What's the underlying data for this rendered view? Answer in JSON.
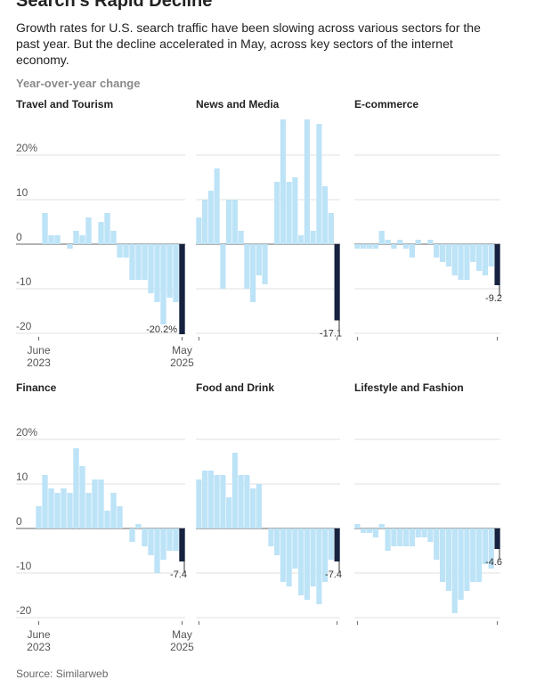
{
  "title": "Search's Rapid Decline",
  "subtitle": "Growth rates for U.S. search traffic have been slowing across various sectors for the past year. But the decline accelerated in May, across key sectors of the internet economy.",
  "axis_label": "Year-over-year change",
  "source": "Source: Similarweb",
  "chart_data": [
    {
      "type": "bar",
      "title": "Travel and Tourism",
      "color": "#bde3f7",
      "highlight_color": "#16223f",
      "categories": [
        "June 2023",
        null,
        null,
        null,
        null,
        null,
        null,
        null,
        null,
        null,
        null,
        null,
        null,
        null,
        null,
        null,
        null,
        null,
        null,
        null,
        null,
        null,
        null,
        "May 2025"
      ],
      "values": [
        0,
        7,
        2,
        2,
        0,
        -1,
        3,
        2,
        6,
        0,
        5,
        7,
        3,
        -3,
        -3,
        -8,
        -8,
        -8,
        -11,
        -13,
        -18,
        -12,
        -13,
        -20.2
      ],
      "value_labels": [
        null,
        null,
        null,
        null,
        null,
        null,
        null,
        null,
        null,
        null,
        null,
        null,
        null,
        null,
        null,
        null,
        null,
        null,
        null,
        null,
        null,
        null,
        null,
        "-20.2%"
      ],
      "ylim": [
        -21,
        30
      ],
      "yticks": [
        {
          "value": 20,
          "label": "20%"
        },
        10,
        0,
        -10,
        -20
      ]
    },
    {
      "type": "bar",
      "title": "News and Media",
      "color": "#bde3f7",
      "highlight_color": "#16223f",
      "values": [
        6,
        10,
        12,
        17,
        -10,
        10,
        10,
        3,
        -10,
        -13,
        -7,
        -9,
        0,
        14,
        28,
        14,
        15,
        2,
        28,
        3,
        27,
        13,
        7,
        -17.1
      ],
      "ylim": [
        -21,
        30
      ],
      "yticks": [
        20,
        10,
        0,
        -10,
        -20
      ]
    },
    {
      "type": "bar",
      "title": "E-commerce",
      "color": "#bde3f7",
      "highlight_color": "#16223f",
      "values": [
        -1,
        -1,
        -1,
        -1,
        3,
        1,
        -1,
        1,
        -1,
        -3,
        1,
        0,
        1,
        -3,
        -4,
        -5,
        -7,
        -8,
        -8,
        -4,
        -6,
        -7,
        -5,
        -9.2
      ],
      "ylim": [
        -21,
        30
      ],
      "yticks": [
        20,
        10,
        0,
        -10,
        -20
      ]
    },
    {
      "type": "bar",
      "title": "Finance",
      "color": "#bde3f7",
      "highlight_color": "#16223f",
      "categories": [
        "June 2023",
        null,
        null,
        null,
        null,
        null,
        null,
        null,
        null,
        null,
        null,
        null,
        null,
        null,
        null,
        null,
        null,
        null,
        null,
        null,
        null,
        null,
        null,
        "May 2025"
      ],
      "values": [
        5,
        12,
        9,
        8,
        9,
        8,
        18,
        14,
        8,
        11,
        11,
        4,
        8,
        5,
        0,
        -3,
        1,
        -4,
        -6,
        -10,
        -7,
        -5,
        -5,
        -7.4
      ],
      "ylim": [
        -21,
        30
      ],
      "yticks": [
        {
          "value": 20,
          "label": "20%"
        },
        10,
        0,
        -10,
        -20
      ]
    },
    {
      "type": "bar",
      "title": "Food and Drink",
      "color": "#bde3f7",
      "highlight_color": "#16223f",
      "values": [
        11,
        13,
        13,
        12,
        12,
        7,
        17,
        12,
        12,
        9,
        10,
        0,
        -4,
        -6,
        -12,
        -13,
        -9,
        -15,
        -16,
        -13,
        -17,
        -12,
        -7,
        -7.4
      ],
      "ylim": [
        -21,
        30
      ],
      "yticks": [
        20,
        10,
        0,
        -10,
        -20
      ]
    },
    {
      "type": "bar",
      "title": "Lifestyle and Fashion",
      "color": "#bde3f7",
      "highlight_color": "#16223f",
      "values": [
        1,
        -1,
        -1,
        -2,
        1,
        -5,
        -4,
        -4,
        -4,
        -4,
        -2,
        -2,
        -3,
        -7,
        -12,
        -14,
        -19,
        -16,
        -14,
        -12,
        -12,
        -8,
        -9,
        -4.6
      ],
      "ylim": [
        -21,
        30
      ],
      "yticks": [
        20,
        10,
        0,
        -10,
        -20
      ]
    }
  ]
}
